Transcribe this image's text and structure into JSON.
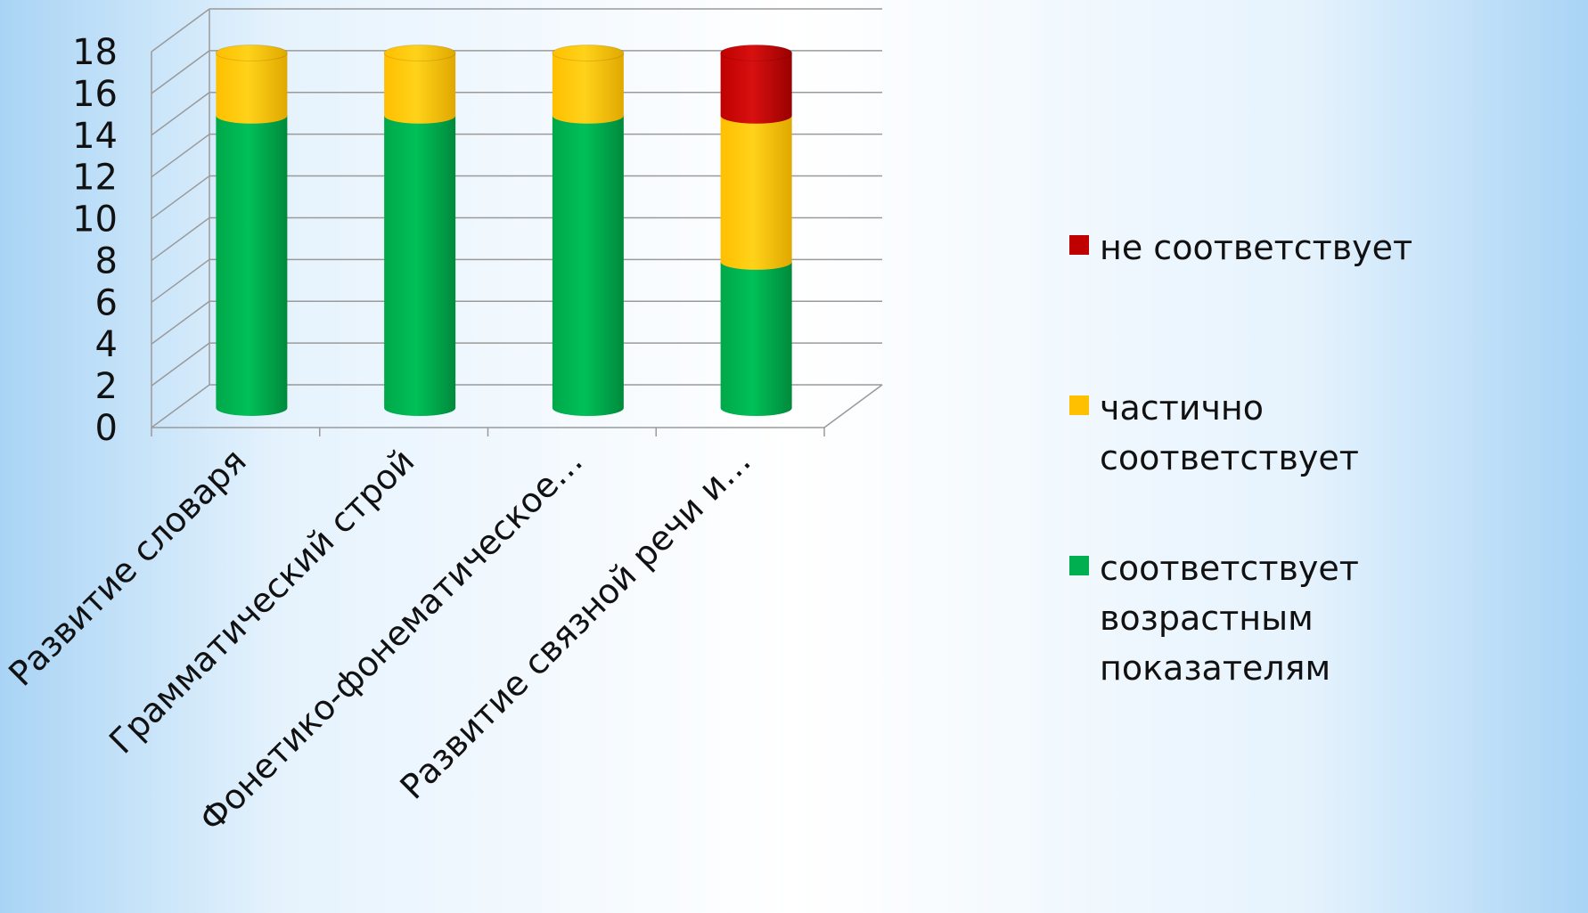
{
  "chart_data": {
    "type": "bar",
    "stacked": true,
    "three_d": true,
    "categories": [
      "Развитие словаря",
      "Грамматический строй",
      "Фонетико-фонематическое…",
      "Развитие связной речи и…"
    ],
    "series": [
      {
        "name": "соответствует возрастным показателям",
        "color": "#00b050",
        "values": [
          14,
          14,
          14,
          7
        ]
      },
      {
        "name": "частично соответствует",
        "color": "#ffc000",
        "values": [
          3,
          3,
          3,
          7
        ]
      },
      {
        "name": "не соответствует",
        "color": "#c00000",
        "values": [
          0,
          0,
          0,
          3
        ]
      }
    ],
    "ylim": [
      0,
      18
    ],
    "yticks": [
      "0",
      "2",
      "4",
      "6",
      "8",
      "10",
      "12",
      "14",
      "16",
      "18"
    ],
    "grid": true,
    "legend": "right"
  },
  "legend": {
    "items": [
      {
        "label": "не соответствует",
        "color": "#c00000"
      },
      {
        "label": "частично соответствует",
        "color": "#ffc000"
      },
      {
        "label": "соответствует возрастным показателям",
        "color": "#00b050"
      }
    ]
  }
}
